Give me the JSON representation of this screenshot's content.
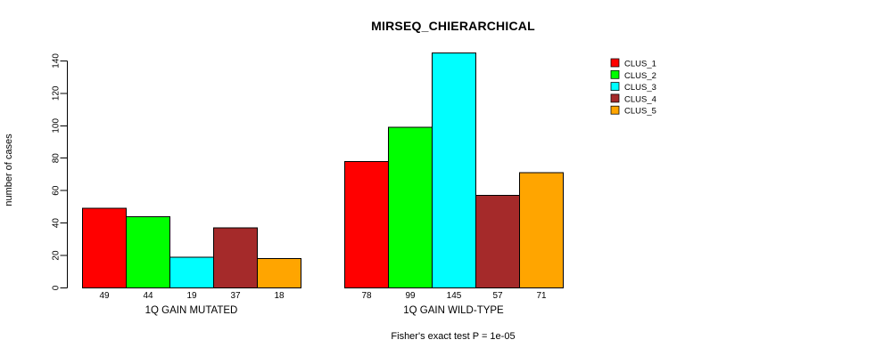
{
  "chart_data": {
    "type": "bar",
    "title": "MIRSEQ_CHIERARCHICAL",
    "ylabel": "number of cases",
    "xlabel": "",
    "footer": "Fisher's exact test P = 1e-05",
    "ylim": [
      0,
      140
    ],
    "yticks": [
      0,
      20,
      40,
      60,
      80,
      100,
      120,
      140
    ],
    "grid": false,
    "legend_position": "top-right",
    "bar_value_labels": true,
    "background": "#FFFFFF",
    "axis_color": "#000000",
    "categories": [
      "1Q GAIN MUTATED",
      "1Q GAIN WILD-TYPE"
    ],
    "series": [
      {
        "name": "CLUS_1",
        "color": "#FF0000",
        "values": [
          49,
          78
        ]
      },
      {
        "name": "CLUS_2",
        "color": "#00FF00",
        "values": [
          44,
          99
        ]
      },
      {
        "name": "CLUS_3",
        "color": "#00FFFF",
        "values": [
          19,
          145
        ]
      },
      {
        "name": "CLUS_4",
        "color": "#A52A2A",
        "values": [
          37,
          57
        ]
      },
      {
        "name": "CLUS_5",
        "color": "#FFA500",
        "values": [
          18,
          71
        ]
      }
    ]
  }
}
